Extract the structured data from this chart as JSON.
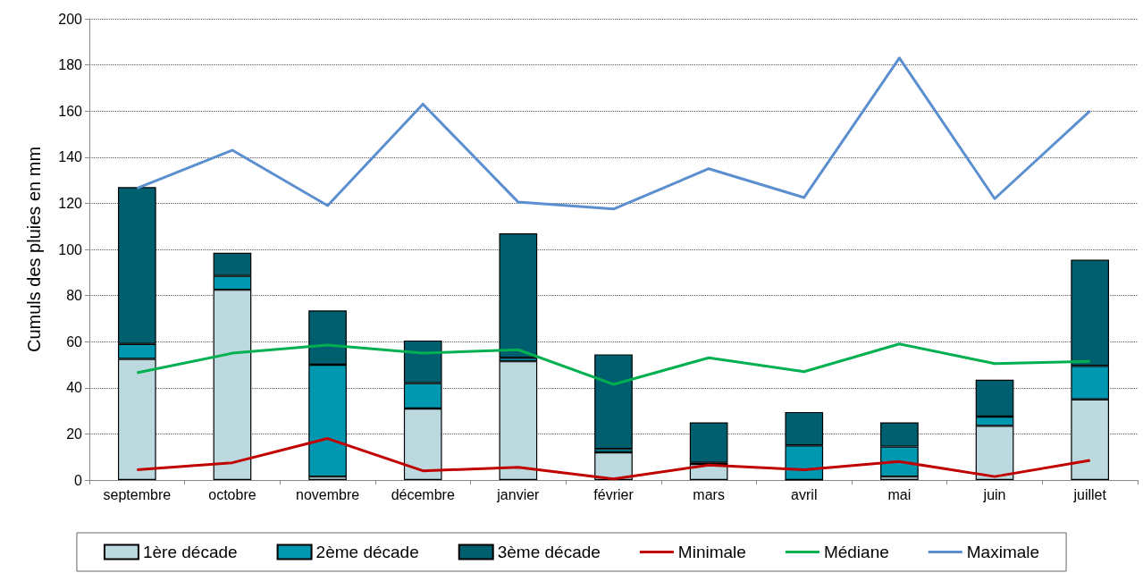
{
  "chart_data": {
    "type": "bar",
    "stacked": true,
    "ylabel": "Cumuls des pluies en mm",
    "categories": [
      "septembre",
      "octobre",
      "novembre",
      "décembre",
      "janvier",
      "février",
      "mars",
      "avril",
      "mai",
      "juin",
      "juillet"
    ],
    "series": [
      {
        "name": "1ère décade",
        "color": "#bcd9e0",
        "values": [
          52.5,
          82.5,
          1.5,
          31,
          51.5,
          12,
          7,
          0,
          1.5,
          23.5,
          35
        ]
      },
      {
        "name": "2ème décade",
        "color": "#0097b0",
        "values": [
          6.5,
          6,
          48.5,
          11,
          1.5,
          1.5,
          0.5,
          15,
          13,
          4,
          14.5
        ]
      },
      {
        "name": "3ème décade",
        "color": "#005f6e",
        "values": [
          68,
          10,
          23.5,
          18.5,
          54,
          41,
          17.5,
          14.5,
          10.5,
          16,
          46
        ]
      },
      {
        "name": "Minimale",
        "type": "line",
        "color": "#c00000",
        "values": [
          4.5,
          7.5,
          18,
          4,
          5.5,
          0.5,
          6.5,
          4.5,
          8,
          1.5,
          8.5
        ]
      },
      {
        "name": "Médiane",
        "type": "line",
        "color": "#00b050",
        "values": [
          46.5,
          55,
          58.5,
          55,
          56.5,
          41.5,
          53,
          47,
          59,
          50.5,
          51.5
        ]
      },
      {
        "name": "Maximale",
        "type": "line",
        "color": "#5b8fd0",
        "values": [
          126.5,
          143,
          119,
          163,
          120.5,
          117.5,
          135,
          122.5,
          183,
          122,
          160
        ]
      }
    ],
    "ylim": [
      0,
      200
    ],
    "yticks": [
      0,
      20,
      40,
      60,
      80,
      100,
      120,
      140,
      160,
      180,
      200
    ],
    "grid": "y",
    "legend": "bottom",
    "marker": "none",
    "line_style": "solid"
  }
}
